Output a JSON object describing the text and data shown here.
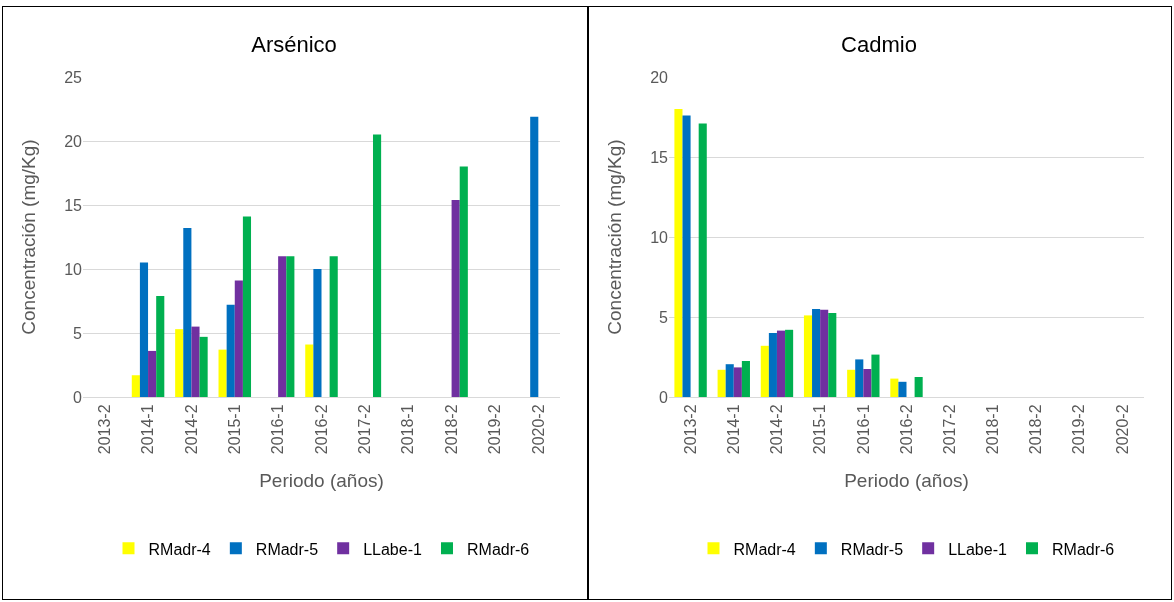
{
  "chart_data": [
    {
      "type": "bar",
      "title": "Arsénico",
      "xlabel": "Periodo (años)",
      "ylabel": "Concentración (mg/Kg)",
      "categories": [
        "2013-2",
        "2014-1",
        "2014-2",
        "2015-1",
        "2016-1",
        "2016-2",
        "2017-2",
        "2018-1",
        "2018-2",
        "2019-2",
        "2020-2"
      ],
      "series": [
        {
          "name": "RMadr-4",
          "color": "#ffff00",
          "values": [
            null,
            1.7,
            5.3,
            3.7,
            null,
            4.1,
            null,
            null,
            null,
            null,
            null
          ]
        },
        {
          "name": "RMadr-5",
          "color": "#0070c0",
          "values": [
            null,
            10.5,
            13.2,
            7.2,
            null,
            10.0,
            null,
            null,
            null,
            null,
            21.9
          ]
        },
        {
          "name": "LLabe-1",
          "color": "#7030a0",
          "values": [
            null,
            3.6,
            5.5,
            9.1,
            11.0,
            null,
            null,
            null,
            15.4,
            null,
            null
          ]
        },
        {
          "name": "RMadr-6",
          "color": "#00b050",
          "values": [
            null,
            7.9,
            4.7,
            14.1,
            11.0,
            11.0,
            20.5,
            null,
            18.0,
            null,
            null
          ]
        }
      ],
      "ylim": [
        0,
        25
      ],
      "yticks": [
        0,
        5,
        10,
        15,
        20,
        25
      ],
      "grid": "y",
      "legend": "bottom"
    },
    {
      "type": "bar",
      "title": "Cadmio",
      "xlabel": "Periodo (años)",
      "ylabel": "Concentración (mg/Kg)",
      "categories": [
        "2013-2",
        "2014-1",
        "2014-2",
        "2015-1",
        "2016-1",
        "2016-2",
        "2017-2",
        "2018-1",
        "2018-2",
        "2019-2",
        "2020-2"
      ],
      "series": [
        {
          "name": "RMadr-4",
          "color": "#ffff00",
          "values": [
            18.0,
            1.7,
            3.2,
            5.1,
            1.7,
            1.15,
            null,
            null,
            null,
            null,
            null
          ]
        },
        {
          "name": "RMadr-5",
          "color": "#0070c0",
          "values": [
            17.6,
            2.05,
            4.0,
            5.5,
            2.35,
            0.95,
            null,
            null,
            null,
            null,
            null
          ]
        },
        {
          "name": "LLabe-1",
          "color": "#7030a0",
          "values": [
            null,
            1.85,
            4.15,
            5.45,
            1.75,
            null,
            null,
            null,
            null,
            null,
            null
          ]
        },
        {
          "name": "RMadr-6",
          "color": "#00b050",
          "values": [
            17.1,
            2.25,
            4.2,
            5.25,
            2.65,
            1.25,
            null,
            null,
            null,
            null,
            null
          ]
        }
      ],
      "ylim": [
        0,
        20
      ],
      "yticks": [
        0,
        5,
        10,
        15,
        20
      ],
      "grid": "y",
      "legend": "bottom"
    }
  ]
}
